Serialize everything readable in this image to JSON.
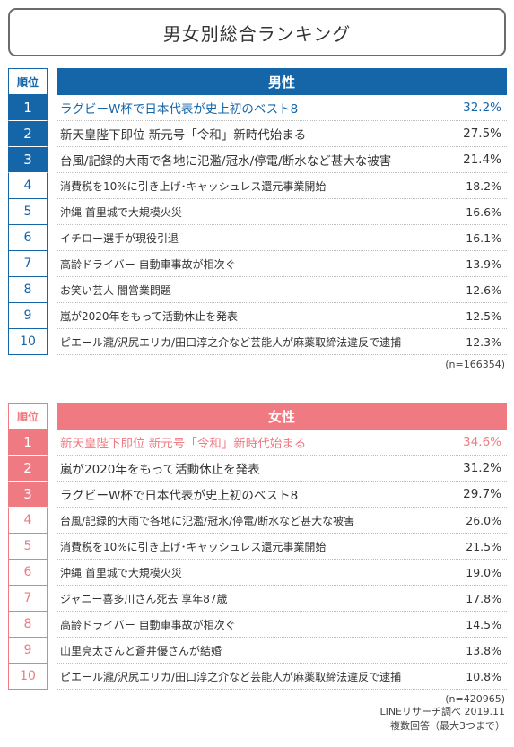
{
  "title": "男女別総合ランキング",
  "rank_header": "順位",
  "male": {
    "header": "男性",
    "rows": [
      {
        "rank": "1",
        "label": "ラグビーW杯で日本代表が史上初のベスト8",
        "pct": "32.2%"
      },
      {
        "rank": "2",
        "label": "新天皇陛下即位 新元号「令和」新時代始まる",
        "pct": "27.5%"
      },
      {
        "rank": "3",
        "label": "台風/記録的大雨で各地に氾濫/冠水/停電/断水など甚大な被害",
        "pct": "21.4%"
      },
      {
        "rank": "4",
        "label": "消費税を10%に引き上げ･キャッシュレス還元事業開始",
        "pct": "18.2%"
      },
      {
        "rank": "5",
        "label": "沖縄 首里城で大規模火災",
        "pct": "16.6%"
      },
      {
        "rank": "6",
        "label": "イチロー選手が現役引退",
        "pct": "16.1%"
      },
      {
        "rank": "7",
        "label": "高齢ドライバー 自動車事故が相次ぐ",
        "pct": "13.9%"
      },
      {
        "rank": "8",
        "label": "お笑い芸人 闇営業問題",
        "pct": "12.6%"
      },
      {
        "rank": "9",
        "label": "嵐が2020年をもって活動休止を発表",
        "pct": "12.5%"
      },
      {
        "rank": "10",
        "label": "ピエール瀧/沢尻エリカ/田口淳之介など芸能人が麻薬取締法違反で逮捕",
        "pct": "12.3%"
      }
    ],
    "n": "(n=166354)"
  },
  "female": {
    "header": "女性",
    "rows": [
      {
        "rank": "1",
        "label": "新天皇陛下即位 新元号「令和」新時代始まる",
        "pct": "34.6%"
      },
      {
        "rank": "2",
        "label": "嵐が2020年をもって活動休止を発表",
        "pct": "31.2%"
      },
      {
        "rank": "3",
        "label": "ラグビーW杯で日本代表が史上初のベスト8",
        "pct": "29.7%"
      },
      {
        "rank": "4",
        "label": "台風/記録的大雨で各地に氾濫/冠水/停電/断水など甚大な被害",
        "pct": "26.0%"
      },
      {
        "rank": "5",
        "label": "消費税を10%に引き上げ･キャッシュレス還元事業開始",
        "pct": "21.5%"
      },
      {
        "rank": "6",
        "label": "沖縄 首里城で大規模火災",
        "pct": "19.0%"
      },
      {
        "rank": "7",
        "label": "ジャニー喜多川さん死去 享年87歳",
        "pct": "17.8%"
      },
      {
        "rank": "8",
        "label": "高齢ドライバー 自動車事故が相次ぐ",
        "pct": "14.5%"
      },
      {
        "rank": "9",
        "label": "山里亮太さんと蒼井優さんが結婚",
        "pct": "13.8%"
      },
      {
        "rank": "10",
        "label": "ピエール瀧/沢尻エリカ/田口淳之介など芸能人が麻薬取締法違反で逮捕",
        "pct": "10.8%"
      }
    ],
    "n": "(n=420965)"
  },
  "footer": {
    "source": "LINEリサーチ調べ 2019.11",
    "note": "複数回答（最大3つまで）"
  },
  "colors": {
    "male": "#1565a9",
    "female": "#f07a82"
  }
}
